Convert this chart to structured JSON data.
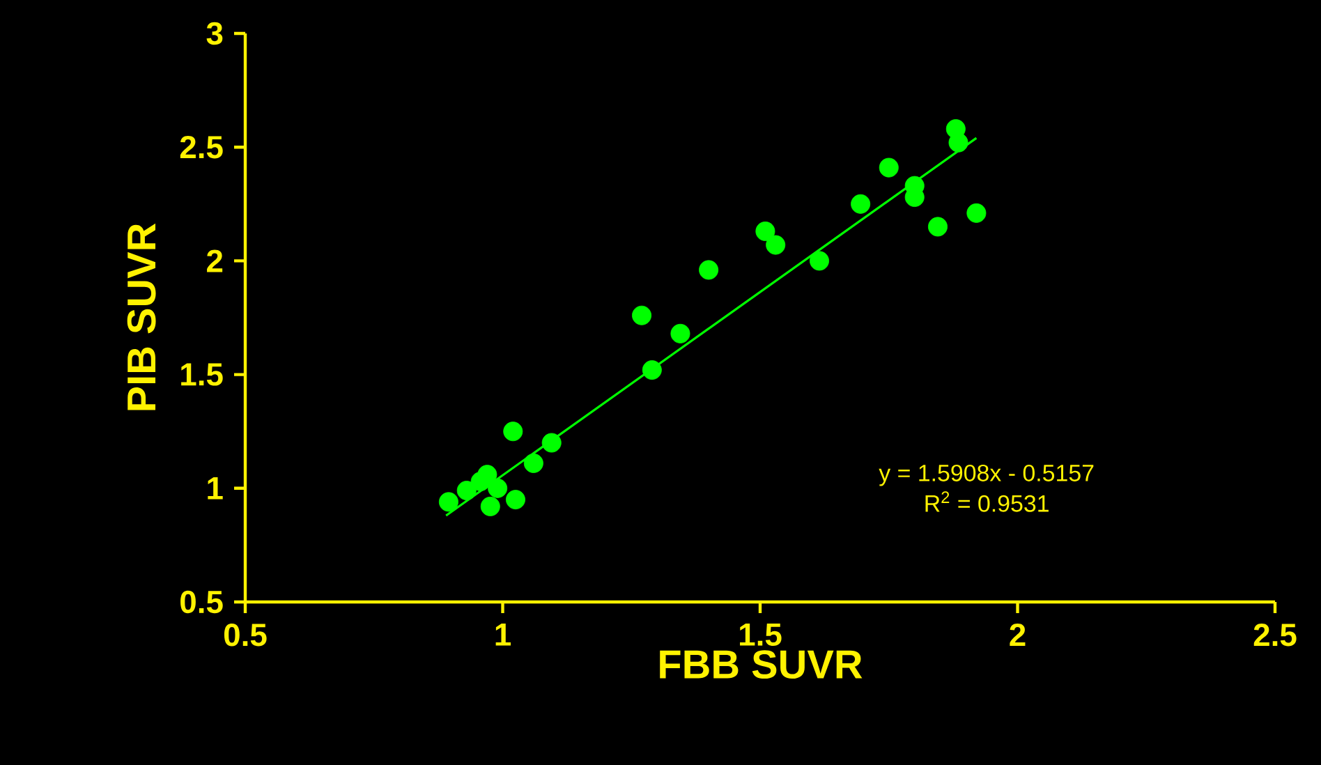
{
  "chart_data": {
    "type": "scatter",
    "xlabel": "FBB SUVR",
    "ylabel": "PIB SUVR",
    "xlim": [
      0.5,
      2.5
    ],
    "ylim": [
      0.5,
      3
    ],
    "xticks": [
      0.5,
      1,
      1.5,
      2,
      2.5
    ],
    "yticks": [
      0.5,
      1,
      1.5,
      2,
      2.5,
      3
    ],
    "series": [
      {
        "marker": "circle",
        "color": "#00ff00",
        "x": [
          0.895,
          0.93,
          0.957,
          0.97,
          0.976,
          0.99,
          1.02,
          1.025,
          1.06,
          1.095,
          1.27,
          1.29,
          1.345,
          1.4,
          1.51,
          1.53,
          1.615,
          1.695,
          1.75,
          1.8,
          1.8,
          1.845,
          1.88,
          1.885,
          1.92
        ],
        "values": [
          0.94,
          0.99,
          1.03,
          1.06,
          0.92,
          1.0,
          1.25,
          0.95,
          1.11,
          1.2,
          1.76,
          1.52,
          1.68,
          1.96,
          2.13,
          2.07,
          2.0,
          2.25,
          2.41,
          2.33,
          2.28,
          2.15,
          2.58,
          2.52,
          2.21
        ]
      },
      {
        "type": "line",
        "color": "#00ff00",
        "x": [
          0.89,
          1.92
        ],
        "values": [
          0.88,
          2.54
        ]
      }
    ],
    "annotations": [
      "y = 1.5908x - 0.5157",
      "R$^{2}$ = 0.9531"
    ]
  }
}
